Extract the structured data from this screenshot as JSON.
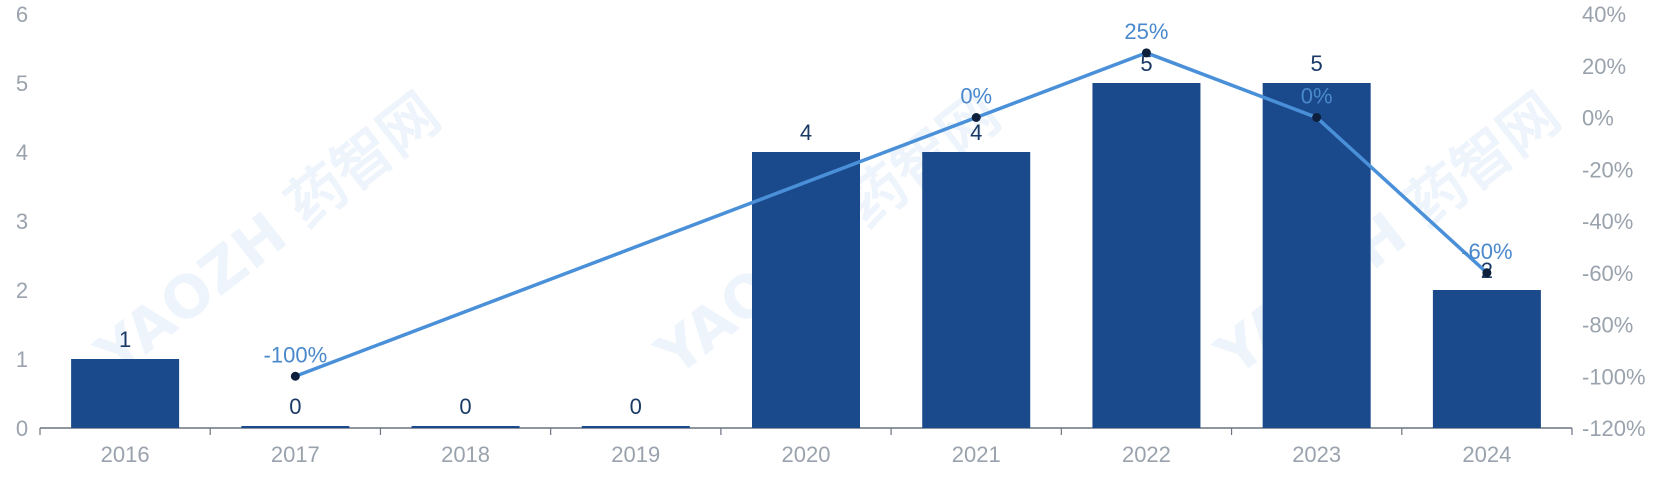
{
  "chart_data": {
    "type": "bar",
    "categories": [
      "2016",
      "2017",
      "2018",
      "2019",
      "2020",
      "2021",
      "2022",
      "2023",
      "2024"
    ],
    "series": [
      {
        "type": "bar",
        "values": [
          1,
          0,
          0,
          0,
          4,
          4,
          5,
          5,
          2
        ],
        "color": "#1a4a8c"
      },
      {
        "type": "line",
        "x": [
          "2017",
          "2021",
          "2022",
          "2023",
          "2024"
        ],
        "values": [
          -100,
          0,
          25,
          0,
          -60
        ],
        "labels": [
          "-100%",
          "0%",
          "25%",
          "0%",
          "-60%"
        ],
        "color": "#4a90d9",
        "axis": "right"
      }
    ],
    "ylim": [
      0,
      6
    ],
    "yticks": [
      "0",
      "1",
      "2",
      "3",
      "4",
      "5",
      "6"
    ],
    "y2lim": [
      -120,
      40
    ],
    "y2ticks": [
      "-120%",
      "-100%",
      "-80%",
      "-60%",
      "-40%",
      "-20%",
      "0%",
      "20%",
      "40%"
    ],
    "xlabel": "",
    "ylabel": "",
    "grid": false,
    "watermark": "YAOZH 药智网"
  }
}
